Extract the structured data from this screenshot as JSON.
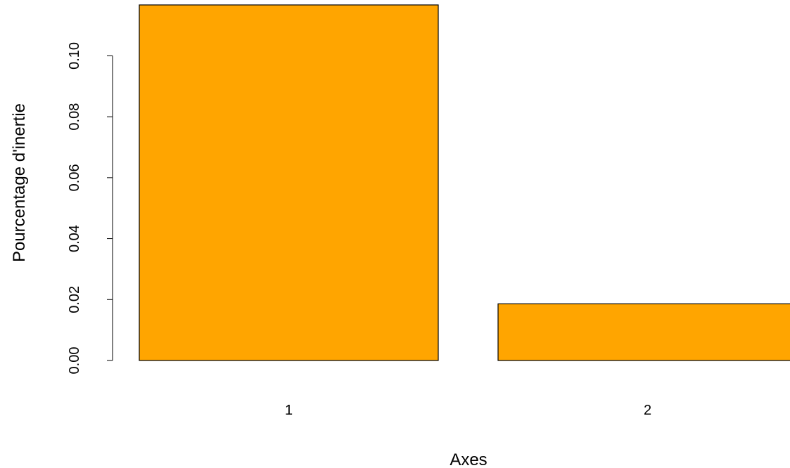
{
  "chart_data": {
    "type": "bar",
    "xlabel": "Axes",
    "ylabel": "Pourcentage d'inertie",
    "categories": [
      "1",
      "2"
    ],
    "values": [
      0.1167,
      0.0186
    ],
    "ylim": [
      0,
      0.1167
    ],
    "yticks": [
      "0.00",
      "0.02",
      "0.04",
      "0.06",
      "0.08",
      "0.10"
    ],
    "bar_color": "#FFA500",
    "grid": false,
    "legend": "none"
  }
}
